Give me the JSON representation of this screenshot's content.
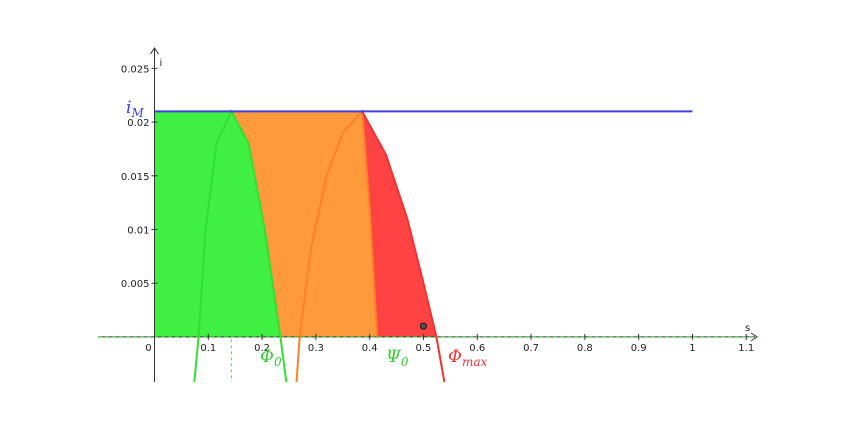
{
  "chart_data": {
    "type": "function_plot",
    "xlim": [
      -0.105,
      1.12
    ],
    "ylim": [
      -0.0042,
      0.0269
    ],
    "xticks": [
      0,
      0.1,
      0.2,
      0.3,
      0.4,
      0.5,
      0.6,
      0.7,
      0.8,
      0.9,
      1,
      1.1
    ],
    "yticks": [
      0.005,
      0.01,
      0.015,
      0.02,
      0.025
    ],
    "x_label": "s",
    "y_label": "i",
    "curves": [
      {
        "color": "#33dd33",
        "fill": "#3ff043",
        "x": [
          0.074,
          0.082,
          0.095,
          0.115,
          0.143,
          0.175,
          0.205,
          0.234,
          0.245
        ],
        "values": [
          -0.0042,
          0,
          0.01,
          0.018,
          0.021,
          0.018,
          0.01,
          0,
          -0.0042
        ]
      },
      {
        "color": "#ff7f2a",
        "fill": "#ff9a3c",
        "x": [
          0.264,
          0.27,
          0.29,
          0.32,
          0.35,
          0.386,
          0.4,
          0.414
        ],
        "values": [
          -0.0042,
          0,
          0.008,
          0.015,
          0.019,
          0.021,
          0.012,
          0
        ]
      },
      {
        "color": "#ee3333",
        "fill": "#ff4242",
        "x": [
          0.386,
          0.43,
          0.47,
          0.5,
          0.524,
          0.539
        ],
        "values": [
          0.021,
          0.017,
          0.011,
          0.005,
          0,
          -0.0042
        ]
      }
    ],
    "level": {
      "value": 0.021,
      "x": [
        0,
        1
      ],
      "color": "#4040dd"
    },
    "point": {
      "x": 0.5,
      "y": 0.001
    },
    "dashed_x": 0.143,
    "annotations": [
      {
        "text": "i",
        "sub": "M",
        "color": "#4040dd"
      },
      {
        "text": "Φ",
        "sub": "0",
        "color": "#33cc33"
      },
      {
        "text": "Ψ",
        "sub": "0",
        "color": "#33cc33"
      },
      {
        "text": "Φ",
        "sub": "max",
        "color": "#ee3333"
      }
    ]
  }
}
